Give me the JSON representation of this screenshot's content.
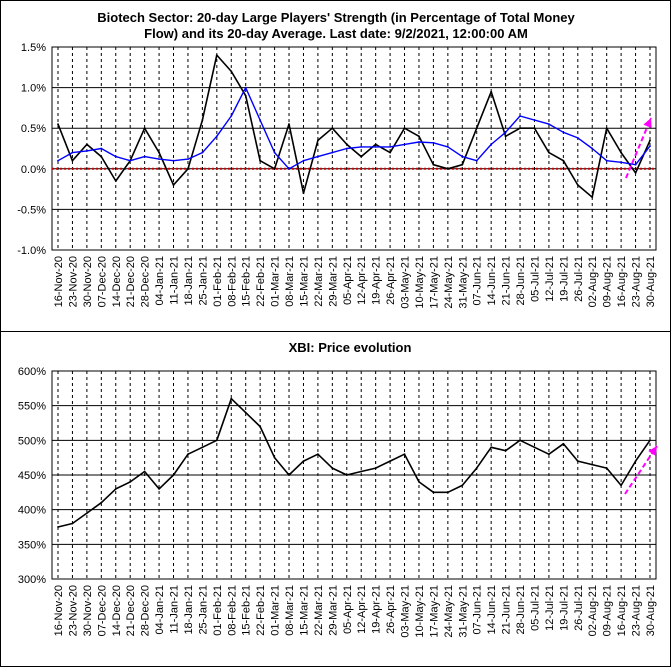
{
  "chart_data": [
    {
      "type": "line",
      "title": "Biotech Sector: 20-day Large Players' Strength (in Percentage of Total Money Flow) and its 20-day Average. Last date: 9/2/2021, 12:00:00 AM",
      "title_lines": [
        "Biotech Sector: 20-day Large Players' Strength (in Percentage of Total Money",
        "Flow) and its 20-day Average. Last date: 9/2/2021, 12:00:00 AM"
      ],
      "xlabel": "",
      "ylabel": "",
      "ylim": [
        -1.0,
        1.5
      ],
      "yticks": [
        "1.5%",
        "1.0%",
        "0.5%",
        "0.0%",
        "-0.5%",
        "-1.0%"
      ],
      "grid": true,
      "x": [
        "16-Nov-20",
        "23-Nov-20",
        "30-Nov-20",
        "07-Dec-20",
        "14-Dec-20",
        "21-Dec-20",
        "28-Dec-20",
        "04-Jan-21",
        "11-Jan-21",
        "18-Jan-21",
        "25-Jan-21",
        "01-Feb-21",
        "08-Feb-21",
        "15-Feb-21",
        "22-Feb-21",
        "01-Mar-21",
        "08-Mar-21",
        "15-Mar-21",
        "22-Mar-21",
        "29-Mar-21",
        "05-Apr-21",
        "12-Apr-21",
        "19-Apr-21",
        "26-Apr-21",
        "03-May-21",
        "10-May-21",
        "17-May-21",
        "24-May-21",
        "31-May-21",
        "07-Jun-21",
        "14-Jun-21",
        "21-Jun-21",
        "28-Jun-21",
        "05-Jul-21",
        "12-Jul-21",
        "19-Jul-21",
        "26-Jul-21",
        "02-Aug-21",
        "09-Aug-21",
        "16-Aug-21",
        "23-Aug-21",
        "30-Aug-21"
      ],
      "series": [
        {
          "color": "#000000",
          "values": [
            0.55,
            0.1,
            0.3,
            0.15,
            -0.15,
            0.1,
            0.5,
            0.2,
            -0.2,
            0.0,
            0.6,
            1.4,
            1.2,
            0.9,
            0.1,
            0.0,
            0.55,
            -0.3,
            0.35,
            0.5,
            0.3,
            0.15,
            0.3,
            0.2,
            0.5,
            0.4,
            0.05,
            0.0,
            0.05,
            0.5,
            0.95,
            0.4,
            0.5,
            0.5,
            0.2,
            0.1,
            -0.2,
            -0.35,
            0.5,
            0.2,
            -0.05,
            0.35
          ]
        },
        {
          "color": "#0000ff",
          "values": [
            0.1,
            0.2,
            0.22,
            0.25,
            0.15,
            0.1,
            0.15,
            0.12,
            0.1,
            0.12,
            0.2,
            0.4,
            0.65,
            1.0,
            0.6,
            0.2,
            0.0,
            0.1,
            0.15,
            0.2,
            0.25,
            0.27,
            0.27,
            0.27,
            0.3,
            0.33,
            0.32,
            0.27,
            0.15,
            0.1,
            0.3,
            0.45,
            0.65,
            0.6,
            0.55,
            0.45,
            0.38,
            0.25,
            0.1,
            0.08,
            0.05,
            0.28
          ]
        }
      ],
      "zero_line_color": "#cc0000",
      "trend_arrow_color": "#ff00ff"
    },
    {
      "type": "line",
      "title": "XBI: Price evolution",
      "xlabel": "",
      "ylabel": "",
      "ylim": [
        300,
        600
      ],
      "yticks": [
        "600%",
        "550%",
        "500%",
        "450%",
        "400%",
        "350%",
        "300%"
      ],
      "grid": true,
      "x": [
        "16-Nov-20",
        "23-Nov-20",
        "30-Nov-20",
        "07-Dec-20",
        "14-Dec-20",
        "21-Dec-20",
        "28-Dec-20",
        "04-Jan-21",
        "11-Jan-21",
        "18-Jan-21",
        "25-Jan-21",
        "01-Feb-21",
        "08-Feb-21",
        "15-Feb-21",
        "22-Feb-21",
        "01-Mar-21",
        "08-Mar-21",
        "15-Mar-21",
        "22-Mar-21",
        "29-Mar-21",
        "05-Apr-21",
        "12-Apr-21",
        "19-Apr-21",
        "26-Apr-21",
        "03-May-21",
        "10-May-21",
        "17-May-21",
        "24-May-21",
        "31-May-21",
        "07-Jun-21",
        "14-Jun-21",
        "21-Jun-21",
        "28-Jun-21",
        "05-Jul-21",
        "12-Jul-21",
        "19-Jul-21",
        "26-Jul-21",
        "02-Aug-21",
        "09-Aug-21",
        "16-Aug-21",
        "23-Aug-21",
        "30-Aug-21"
      ],
      "series": [
        {
          "color": "#000000",
          "values": [
            375,
            380,
            395,
            410,
            430,
            440,
            455,
            430,
            450,
            480,
            490,
            500,
            560,
            540,
            520,
            475,
            450,
            470,
            480,
            460,
            450,
            455,
            460,
            470,
            480,
            440,
            425,
            425,
            435,
            460,
            490,
            485,
            500,
            490,
            480,
            495,
            470,
            465,
            460,
            435,
            470,
            500
          ]
        }
      ],
      "trend_arrow_color": "#ff00ff"
    }
  ]
}
